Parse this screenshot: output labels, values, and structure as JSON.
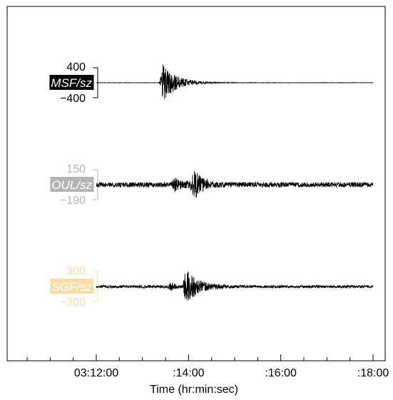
{
  "chart_data": {
    "type": "line",
    "title": "",
    "xlabel": "Time (hr:min:sec)",
    "ylabel": "",
    "x_ticks": [
      "03:12:00",
      ":14:00",
      ":16:00",
      ":18:00"
    ],
    "x_range": [
      "03:12:00",
      "03:18:00"
    ],
    "grid": false,
    "series": [
      {
        "name": "MSF/sz",
        "label_color": "#000000",
        "label_text_color": "#ffffff",
        "scale_color": "#000000",
        "scale_max": "400",
        "scale_min": "−400",
        "ylim": [
          -400,
          400
        ],
        "noise_amplitude": 5,
        "events": [
          {
            "time": "03:13:25",
            "peak_amplitude": 500,
            "duration_s": 55
          }
        ]
      },
      {
        "name": "OUL/sz",
        "label_color": "#b4b4b4",
        "label_text_color": "#ffffff",
        "scale_color": "#b4b4b4",
        "scale_max": "150",
        "scale_min": "−190",
        "ylim": [
          -190,
          150
        ],
        "noise_amplitude": 28,
        "events": [
          {
            "time": "03:13:40",
            "peak_amplitude": 60,
            "duration_s": 40
          },
          {
            "time": "03:14:05",
            "peak_amplitude": 160,
            "duration_s": 30
          }
        ]
      },
      {
        "name": "SGF/sz",
        "label_color": "#f7dca8",
        "label_text_color": "#ffffff",
        "scale_color": "#f7dca8",
        "scale_max": "300",
        "scale_min": "−300",
        "ylim": [
          -300,
          300
        ],
        "noise_amplitude": 28,
        "events": [
          {
            "time": "03:13:35",
            "peak_amplitude": 70,
            "duration_s": 20
          },
          {
            "time": "03:13:55",
            "peak_amplitude": 350,
            "duration_s": 45
          }
        ]
      }
    ]
  }
}
